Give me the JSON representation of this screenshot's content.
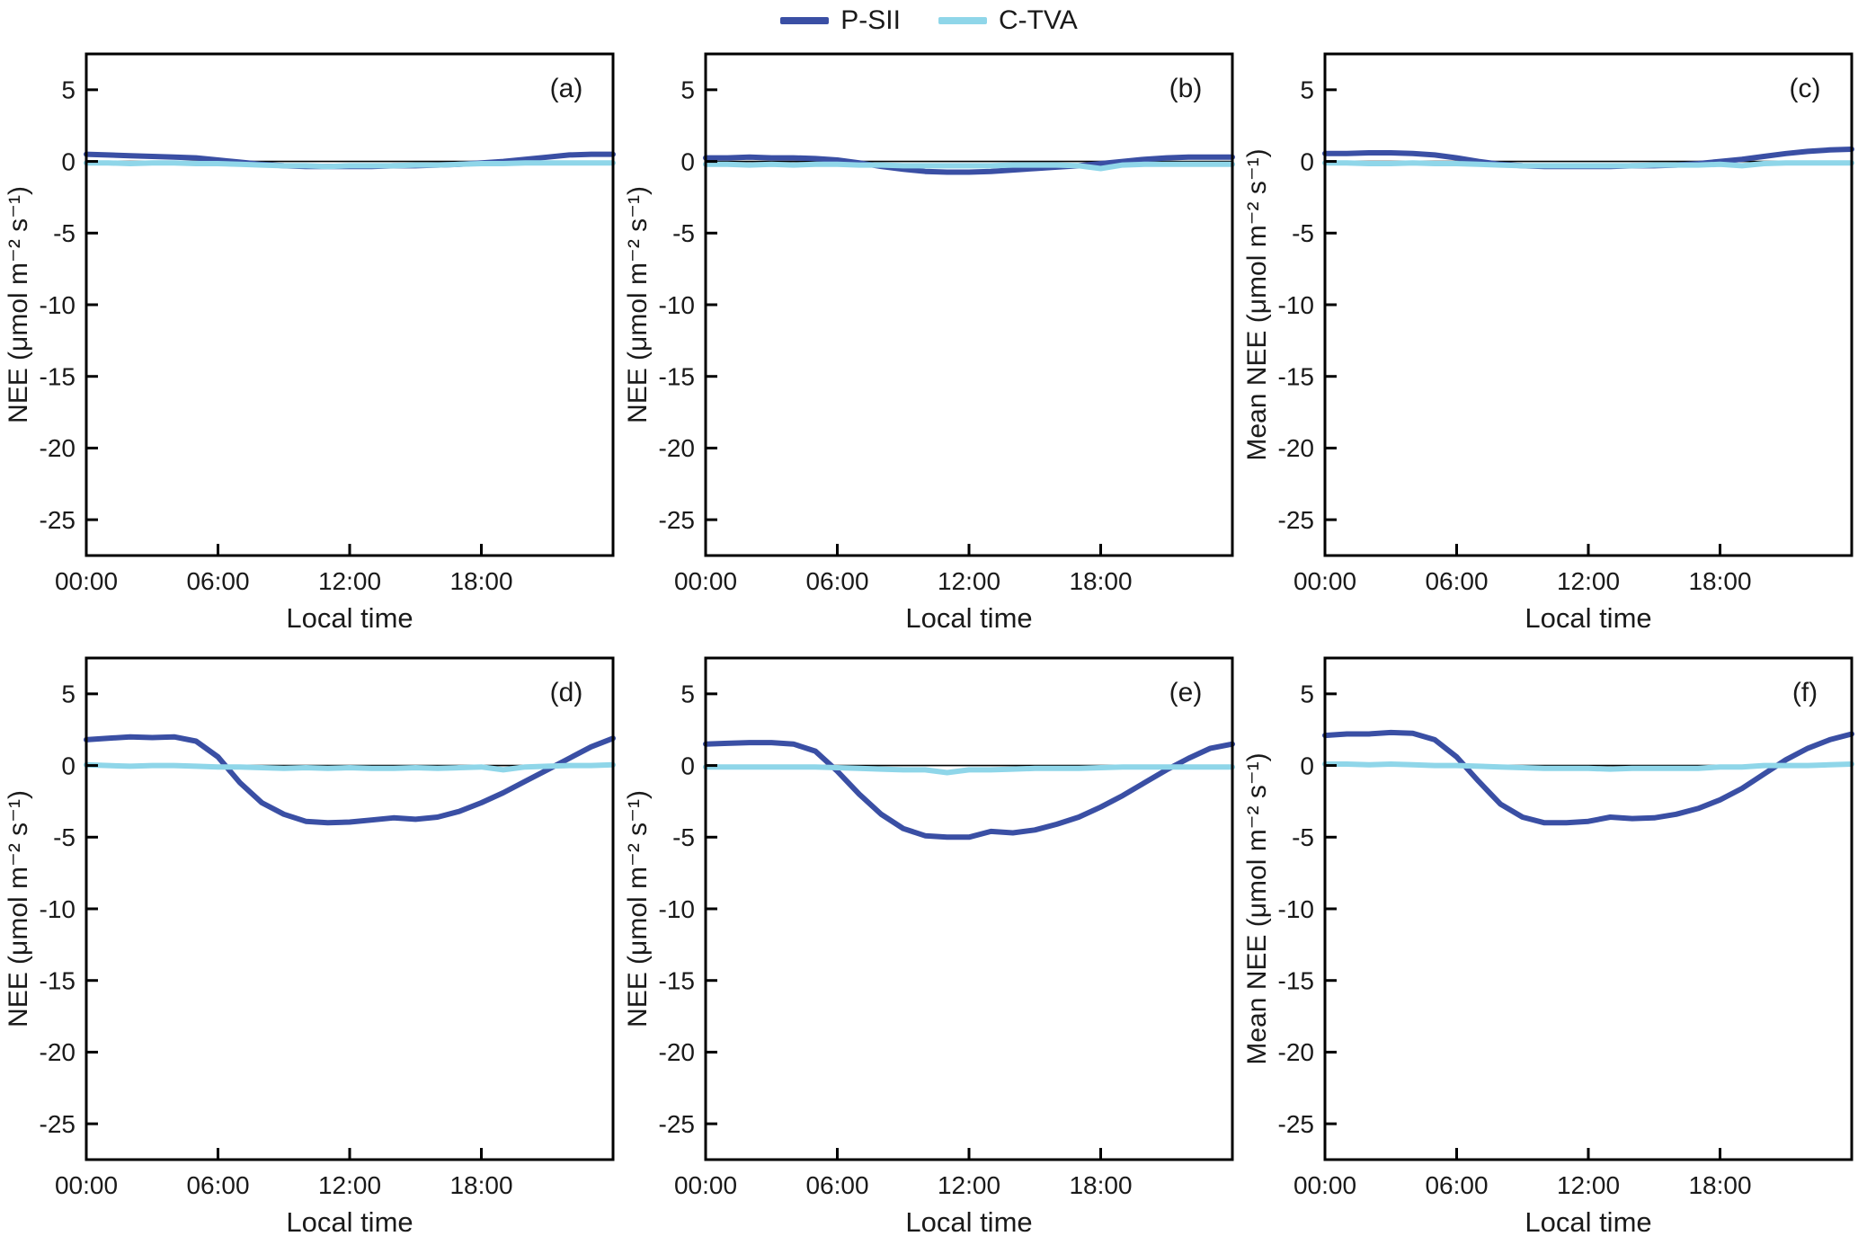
{
  "legend": {
    "entries": [
      {
        "label": "P-SII",
        "color": "#3a4fa4"
      },
      {
        "label": "C-TVA",
        "color": "#8fd6e9"
      }
    ]
  },
  "axes": {
    "xlabel": "Local time",
    "xlim": [
      0,
      24
    ],
    "ylim": [
      -27.5,
      7.5
    ],
    "xticks": [
      0,
      6,
      12,
      18
    ],
    "xtick_labels": [
      "00:00",
      "06:00",
      "12:00",
      "18:00"
    ],
    "yticks": [
      5,
      0,
      -5,
      -10,
      -15,
      -20,
      -25
    ],
    "ytick_labels": [
      "5",
      "0",
      "-5",
      "-10",
      "-15",
      "-20",
      "-25"
    ],
    "grid": false,
    "zero_line": true,
    "legend_position": "top-center"
  },
  "x_hours": [
    0,
    1,
    2,
    3,
    4,
    5,
    6,
    7,
    8,
    9,
    10,
    11,
    12,
    13,
    14,
    15,
    16,
    17,
    18,
    19,
    20,
    21,
    22,
    23,
    24
  ],
  "chart_data": [
    {
      "type": "line",
      "panel_label": "(a)",
      "ylabel": "NEE (μmol m⁻² s⁻¹)",
      "series": [
        {
          "name": "P-SII",
          "values": [
            0.5,
            0.45,
            0.4,
            0.35,
            0.3,
            0.25,
            0.1,
            -0.05,
            -0.2,
            -0.3,
            -0.35,
            -0.35,
            -0.35,
            -0.35,
            -0.3,
            -0.3,
            -0.25,
            -0.2,
            -0.1,
            0.0,
            0.15,
            0.3,
            0.45,
            0.5,
            0.5
          ]
        },
        {
          "name": "C-TVA",
          "values": [
            -0.1,
            -0.1,
            -0.15,
            -0.1,
            -0.1,
            -0.15,
            -0.15,
            -0.2,
            -0.25,
            -0.3,
            -0.3,
            -0.35,
            -0.3,
            -0.3,
            -0.3,
            -0.25,
            -0.25,
            -0.2,
            -0.15,
            -0.15,
            -0.1,
            -0.1,
            -0.1,
            -0.1,
            -0.1
          ]
        }
      ]
    },
    {
      "type": "line",
      "panel_label": "(b)",
      "ylabel": "NEE (μmol m⁻² s⁻¹)",
      "series": [
        {
          "name": "P-SII",
          "values": [
            0.25,
            0.25,
            0.3,
            0.25,
            0.25,
            0.2,
            0.1,
            -0.1,
            -0.35,
            -0.55,
            -0.7,
            -0.75,
            -0.75,
            -0.7,
            -0.6,
            -0.5,
            -0.4,
            -0.3,
            -0.15,
            0.0,
            0.15,
            0.25,
            0.3,
            0.3,
            0.3
          ]
        },
        {
          "name": "C-TVA",
          "values": [
            -0.2,
            -0.2,
            -0.25,
            -0.2,
            -0.25,
            -0.2,
            -0.2,
            -0.25,
            -0.25,
            -0.3,
            -0.3,
            -0.3,
            -0.3,
            -0.3,
            -0.25,
            -0.25,
            -0.25,
            -0.3,
            -0.5,
            -0.25,
            -0.2,
            -0.2,
            -0.2,
            -0.2,
            -0.2
          ]
        }
      ]
    },
    {
      "type": "line",
      "panel_label": "(c)",
      "ylabel": "Mean NEE (μmol m⁻² s⁻¹)",
      "series": [
        {
          "name": "P-SII",
          "values": [
            0.55,
            0.55,
            0.6,
            0.6,
            0.55,
            0.45,
            0.25,
            0.0,
            -0.2,
            -0.3,
            -0.35,
            -0.35,
            -0.35,
            -0.35,
            -0.3,
            -0.3,
            -0.25,
            -0.15,
            0.0,
            0.15,
            0.35,
            0.55,
            0.7,
            0.8,
            0.85
          ]
        },
        {
          "name": "C-TVA",
          "values": [
            -0.1,
            -0.1,
            -0.15,
            -0.15,
            -0.1,
            -0.15,
            -0.15,
            -0.2,
            -0.25,
            -0.3,
            -0.3,
            -0.3,
            -0.3,
            -0.3,
            -0.3,
            -0.25,
            -0.25,
            -0.25,
            -0.2,
            -0.3,
            -0.15,
            -0.1,
            -0.1,
            -0.1,
            -0.1
          ]
        }
      ]
    },
    {
      "type": "line",
      "panel_label": "(d)",
      "ylabel": "NEE (μmol m⁻² s⁻¹)",
      "series": [
        {
          "name": "P-SII",
          "values": [
            1.8,
            1.9,
            2.0,
            1.95,
            2.0,
            1.7,
            0.6,
            -1.2,
            -2.6,
            -3.4,
            -3.9,
            -4.0,
            -3.95,
            -3.8,
            -3.65,
            -3.75,
            -3.6,
            -3.2,
            -2.6,
            -1.9,
            -1.1,
            -0.3,
            0.5,
            1.3,
            1.9
          ]
        },
        {
          "name": "C-TVA",
          "values": [
            0.05,
            0.0,
            -0.05,
            0.0,
            0.0,
            -0.05,
            -0.1,
            -0.1,
            -0.15,
            -0.2,
            -0.15,
            -0.2,
            -0.15,
            -0.2,
            -0.2,
            -0.15,
            -0.2,
            -0.15,
            -0.1,
            -0.3,
            -0.1,
            -0.05,
            0.0,
            0.0,
            0.05
          ]
        }
      ]
    },
    {
      "type": "line",
      "panel_label": "(e)",
      "ylabel": "NEE (μmol m⁻² s⁻¹)",
      "series": [
        {
          "name": "P-SII",
          "values": [
            1.5,
            1.55,
            1.6,
            1.6,
            1.5,
            1.0,
            -0.4,
            -2.0,
            -3.4,
            -4.4,
            -4.9,
            -5.0,
            -5.0,
            -4.6,
            -4.7,
            -4.5,
            -4.1,
            -3.6,
            -2.9,
            -2.1,
            -1.2,
            -0.3,
            0.5,
            1.2,
            1.5
          ]
        },
        {
          "name": "C-TVA",
          "values": [
            -0.1,
            -0.1,
            -0.1,
            -0.1,
            -0.1,
            -0.1,
            -0.15,
            -0.2,
            -0.25,
            -0.3,
            -0.3,
            -0.5,
            -0.3,
            -0.3,
            -0.25,
            -0.2,
            -0.2,
            -0.2,
            -0.15,
            -0.1,
            -0.1,
            -0.1,
            -0.1,
            -0.1,
            -0.1
          ]
        }
      ]
    },
    {
      "type": "line",
      "panel_label": "(f)",
      "ylabel": "Mean NEE (μmol m⁻² s⁻¹)",
      "series": [
        {
          "name": "P-SII",
          "values": [
            2.1,
            2.2,
            2.2,
            2.3,
            2.25,
            1.8,
            0.6,
            -1.1,
            -2.7,
            -3.6,
            -4.0,
            -4.0,
            -3.9,
            -3.6,
            -3.7,
            -3.65,
            -3.4,
            -3.0,
            -2.4,
            -1.6,
            -0.6,
            0.4,
            1.2,
            1.8,
            2.2
          ]
        },
        {
          "name": "C-TVA",
          "values": [
            0.1,
            0.1,
            0.05,
            0.1,
            0.05,
            0.0,
            0.0,
            -0.05,
            -0.1,
            -0.15,
            -0.2,
            -0.2,
            -0.2,
            -0.25,
            -0.2,
            -0.2,
            -0.2,
            -0.2,
            -0.1,
            -0.1,
            0.0,
            0.0,
            0.0,
            0.05,
            0.1
          ]
        }
      ]
    }
  ]
}
